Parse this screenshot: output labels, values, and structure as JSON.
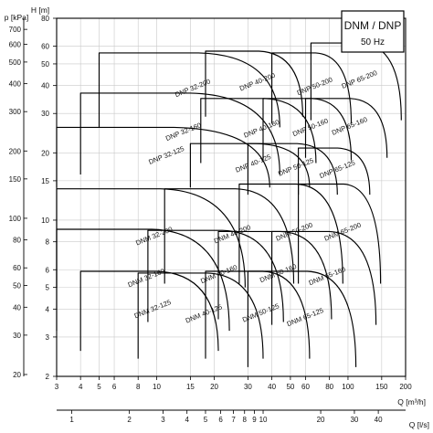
{
  "chart_data": {
    "type": "area",
    "title": "DNM / DNP",
    "subtitle": "50 Hz",
    "x_scale": "log",
    "y_scale": "log",
    "xlabel": "Q [m³/h]",
    "xlabel_secondary": "Q [l/s]",
    "ylabel": "H [m]",
    "ylabel_secondary": "p [kPa]",
    "xlim": [
      3,
      200
    ],
    "ylim": [
      2,
      80
    ],
    "grid": true,
    "x_ticks": [
      3,
      4,
      5,
      6,
      8,
      10,
      15,
      20,
      30,
      40,
      50,
      60,
      80,
      100,
      150,
      200
    ],
    "y_ticks": [
      2,
      3,
      4,
      5,
      6,
      8,
      10,
      15,
      20,
      30,
      40,
      50,
      60,
      80
    ],
    "kpa_ticks": [
      20,
      30,
      40,
      50,
      60,
      80,
      100,
      150,
      200,
      300,
      400,
      500,
      600,
      700
    ],
    "ls_ticks": [
      1,
      2,
      3,
      4,
      5,
      6,
      7,
      8,
      9,
      10,
      20,
      30,
      40
    ],
    "series": [
      {
        "name": "DNM 32-125",
        "family": "DNM",
        "q_range": [
          4,
          21
        ],
        "h_range": [
          2.6,
          5.9
        ]
      },
      {
        "name": "DNM 32-160",
        "family": "DNM",
        "q_range": [
          3,
          24
        ],
        "h_range": [
          3.2,
          9.1
        ]
      },
      {
        "name": "DNM 32-200",
        "family": "DNM",
        "q_range": [
          3,
          29
        ],
        "h_range": [
          5.0,
          13.8
        ]
      },
      {
        "name": "DNM 40-125",
        "family": "DNM",
        "q_range": [
          8,
          36
        ],
        "h_range": [
          2.4,
          5.8
        ]
      },
      {
        "name": "DNM 40-160",
        "family": "DNM",
        "q_range": [
          9,
          46
        ],
        "h_range": [
          3.5,
          9.0
        ]
      },
      {
        "name": "DNM 40-200",
        "family": "DNM",
        "q_range": [
          11,
          52
        ],
        "h_range": [
          5.2,
          13.8
        ]
      },
      {
        "name": "DNM 50-125",
        "family": "DNM",
        "q_range": [
          18,
          63
        ],
        "h_range": [
          2.4,
          5.9
        ]
      },
      {
        "name": "DNM 50-160",
        "family": "DNM",
        "q_range": [
          21,
          82
        ],
        "h_range": [
          3.6,
          8.9
        ]
      },
      {
        "name": "DNM 50-200",
        "family": "DNM",
        "q_range": [
          27,
          94
        ],
        "h_range": [
          5.2,
          14.5
        ]
      },
      {
        "name": "DNM 65-125",
        "family": "DNM",
        "q_range": [
          30,
          110
        ],
        "h_range": [
          2.2,
          5.9
        ]
      },
      {
        "name": "DNM 65-160",
        "family": "DNM",
        "q_range": [
          40,
          140
        ],
        "h_range": [
          3.4,
          8.9
        ]
      },
      {
        "name": "DNM 65-200",
        "family": "DNM",
        "q_range": [
          55,
          148
        ],
        "h_range": [
          5.2,
          14.5
        ]
      },
      {
        "name": "DNP 32-125",
        "family": "DNP",
        "q_range": [
          3,
          39
        ],
        "h_range": [
          14.0,
          26.0
        ]
      },
      {
        "name": "DNP 32-160",
        "family": "DNP",
        "q_range": [
          4,
          44
        ],
        "h_range": [
          16.0,
          37.0
        ]
      },
      {
        "name": "DNP 32-200",
        "family": "DNP",
        "q_range": [
          5,
          44
        ],
        "h_range": [
          26.0,
          56.0
        ]
      },
      {
        "name": "DNP 40-125",
        "family": "DNP",
        "q_range": [
          15,
          63
        ],
        "h_range": [
          14.0,
          22.0
        ]
      },
      {
        "name": "DNP 40-160",
        "family": "DNP",
        "q_range": [
          17,
          68
        ],
        "h_range": [
          18.0,
          35.0
        ]
      },
      {
        "name": "DNP 40-200",
        "family": "DNP",
        "q_range": [
          18,
          58
        ],
        "h_range": [
          29.0,
          57.0
        ]
      },
      {
        "name": "DNP 50-125",
        "family": "DNP",
        "q_range": [
          30,
          88
        ],
        "h_range": [
          13.0,
          22.0
        ]
      },
      {
        "name": "DNP 50-160",
        "family": "DNP",
        "q_range": [
          36,
          104
        ],
        "h_range": [
          18.5,
          35.0
        ]
      },
      {
        "name": "DNP 50-200",
        "family": "DNP",
        "q_range": [
          40,
          104
        ],
        "h_range": [
          27.0,
          56.0
        ]
      },
      {
        "name": "DNP 65-125",
        "family": "DNP",
        "q_range": [
          55,
          130
        ],
        "h_range": [
          13.0,
          21.0
        ]
      },
      {
        "name": "DNP 65-160",
        "family": "DNP",
        "q_range": [
          60,
          160
        ],
        "h_range": [
          19.0,
          35.0
        ]
      },
      {
        "name": "DNP 65-200",
        "family": "DNP",
        "q_range": [
          64,
          190
        ],
        "h_range": [
          28.0,
          62.0
        ]
      }
    ]
  }
}
